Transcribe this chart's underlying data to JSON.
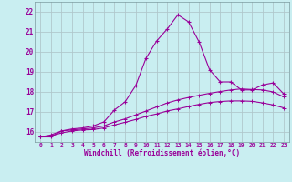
{
  "xlabel": "Windchill (Refroidissement éolien,°C)",
  "xlim": [
    -0.5,
    23.5
  ],
  "ylim": [
    15.5,
    22.5
  ],
  "xticks": [
    0,
    1,
    2,
    3,
    4,
    5,
    6,
    7,
    8,
    9,
    10,
    11,
    12,
    13,
    14,
    15,
    16,
    17,
    18,
    19,
    20,
    21,
    22,
    23
  ],
  "yticks": [
    16,
    17,
    18,
    19,
    20,
    21,
    22
  ],
  "bg_color": "#c9eef1",
  "line_color": "#990099",
  "grid_color": "#b0c8cc",
  "line1_x": [
    0,
    1,
    2,
    3,
    4,
    5,
    6,
    7,
    8,
    9,
    10,
    11,
    12,
    13,
    14,
    15,
    16,
    17,
    18,
    19,
    20,
    21,
    22,
    23
  ],
  "line1_y": [
    15.75,
    15.75,
    16.05,
    16.15,
    16.2,
    16.3,
    16.5,
    17.1,
    17.5,
    18.3,
    19.7,
    20.55,
    21.15,
    21.85,
    21.5,
    20.5,
    19.1,
    18.5,
    18.5,
    18.1,
    18.1,
    18.35,
    18.45,
    17.9
  ],
  "line2_x": [
    0,
    1,
    2,
    3,
    4,
    5,
    6,
    7,
    8,
    9,
    10,
    11,
    12,
    13,
    14,
    15,
    16,
    17,
    18,
    19,
    20,
    21,
    22,
    23
  ],
  "line2_y": [
    15.75,
    15.85,
    16.05,
    16.1,
    16.15,
    16.2,
    16.3,
    16.5,
    16.65,
    16.85,
    17.05,
    17.25,
    17.45,
    17.6,
    17.72,
    17.83,
    17.93,
    18.02,
    18.1,
    18.15,
    18.12,
    18.1,
    18.0,
    17.75
  ],
  "line3_x": [
    0,
    1,
    2,
    3,
    4,
    5,
    6,
    7,
    8,
    9,
    10,
    11,
    12,
    13,
    14,
    15,
    16,
    17,
    18,
    19,
    20,
    21,
    22,
    23
  ],
  "line3_y": [
    15.75,
    15.8,
    15.95,
    16.05,
    16.1,
    16.12,
    16.2,
    16.35,
    16.48,
    16.62,
    16.78,
    16.9,
    17.05,
    17.15,
    17.27,
    17.38,
    17.47,
    17.52,
    17.55,
    17.55,
    17.53,
    17.45,
    17.35,
    17.2
  ]
}
